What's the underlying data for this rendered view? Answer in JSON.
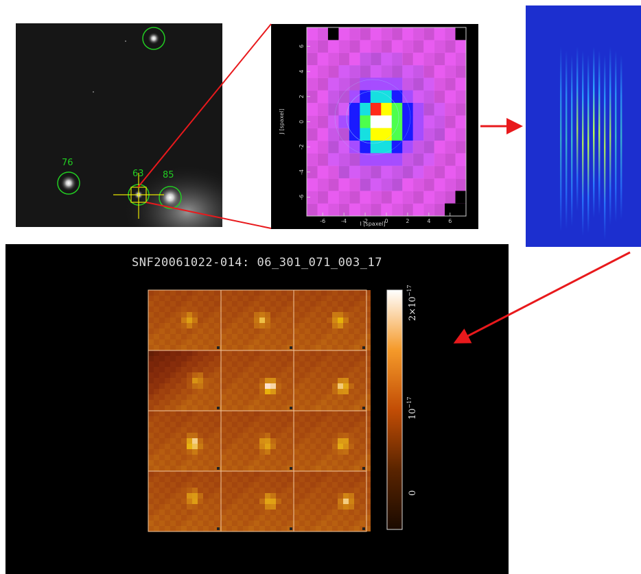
{
  "sky": {
    "source_labels": [
      "76",
      "63",
      "85"
    ],
    "marker_color": "#22cc22",
    "crosshair_color": "#e8e600"
  },
  "psf": {
    "x_axis_label": "I [spaxel]",
    "y_axis_label": "J [spaxel]",
    "x_ticks": [
      "-6",
      "-4",
      "-2",
      "0",
      "2",
      "4",
      "6"
    ],
    "y_ticks": [
      "-6",
      "-4",
      "-2",
      "0",
      "2",
      "4",
      "6"
    ]
  },
  "cube": {
    "title": "SNF20061022-014: 06_301_071_003_17",
    "colorbar_labels": [
      "2×10",
      "10",
      "0"
    ],
    "colorbar_exponents": [
      "−17",
      "−17"
    ],
    "rows": 4,
    "cols": 3
  },
  "colors": {
    "arrow": "#e8191c",
    "psf_background": "#e85cf0",
    "spectra_background": "#1c2fcf",
    "tile_base": "#e86a12"
  }
}
